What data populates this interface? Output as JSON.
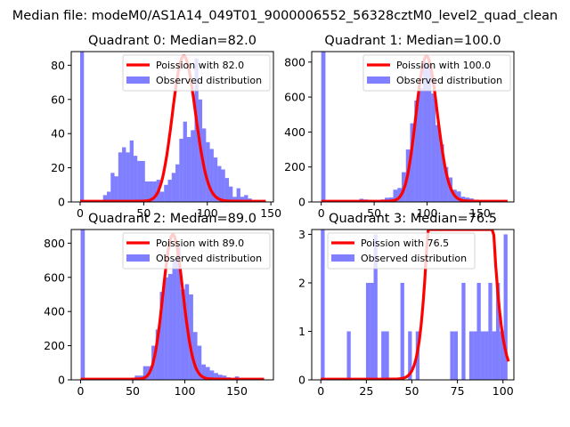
{
  "figure": {
    "suptitle": "Median file: modeM0/AS1A14_049T01_9000006552_56328cztM0_level2_quad_clean"
  },
  "colors": {
    "hist": "#0000ff",
    "hist_alpha": 0.5,
    "poisson": "#ff0000",
    "axis": "#000000"
  },
  "chart_data": [
    {
      "type": "bar",
      "title": "Quadrant 0: Median=82.0",
      "median": 82.0,
      "xlim": [
        -7,
        152
      ],
      "ylim": [
        0,
        88
      ],
      "xticks": [
        0,
        50,
        100,
        150
      ],
      "yticks": [
        0,
        20,
        40,
        60,
        80
      ],
      "legend": [
        "Poission with 82.0",
        "Observed distribution"
      ],
      "legend_loc": "upper right",
      "bin_width": 3,
      "bins_x0": [
        0,
        18,
        21,
        24,
        27,
        30,
        33,
        36,
        39,
        42,
        45,
        48,
        51,
        54,
        57,
        60,
        63,
        66,
        69,
        72,
        75,
        78,
        81,
        84,
        87,
        90,
        93,
        96,
        99,
        102,
        105,
        108,
        111,
        114,
        117,
        120,
        123,
        126,
        129,
        132,
        135
      ],
      "bins_y": [
        400,
        4,
        6,
        17,
        15,
        29,
        32,
        29,
        36,
        27,
        24,
        24,
        12,
        12,
        12,
        13,
        6,
        10,
        13,
        17,
        22,
        37,
        47,
        38,
        42,
        84,
        60,
        43,
        35,
        31,
        26,
        21,
        19,
        14,
        9,
        3,
        8,
        3,
        4,
        2,
        1
      ],
      "poisson_scale": 85
    },
    {
      "type": "bar",
      "title": "Quadrant 1: Median=100.0",
      "median": 100.0,
      "xlim": [
        -9,
        182
      ],
      "ylim": [
        0,
        860
      ],
      "xticks": [
        0,
        50,
        100,
        150
      ],
      "yticks": [
        0,
        200,
        400,
        600,
        800
      ],
      "legend": [
        "Poission with 100.0",
        "Observed distribution"
      ],
      "legend_loc": "upper right",
      "bin_width": 4,
      "bins_x0": [
        0,
        36,
        40,
        44,
        48,
        52,
        56,
        60,
        64,
        68,
        72,
        76,
        80,
        84,
        88,
        92,
        96,
        100,
        104,
        108,
        112,
        116,
        120,
        124,
        128,
        132,
        136,
        140,
        144,
        148,
        152
      ],
      "bins_y": [
        4000,
        18,
        14,
        12,
        10,
        10,
        14,
        24,
        26,
        70,
        80,
        170,
        300,
        450,
        580,
        650,
        800,
        800,
        620,
        440,
        330,
        200,
        140,
        70,
        60,
        30,
        25,
        20,
        12,
        10,
        6
      ],
      "poisson_scale": 830
    },
    {
      "type": "bar",
      "title": "Quadrant 2: Median=89.0",
      "median": 89.0,
      "xlim": [
        -9,
        185
      ],
      "ylim": [
        0,
        880
      ],
      "xticks": [
        0,
        50,
        100,
        150
      ],
      "yticks": [
        0,
        200,
        400,
        600,
        800
      ],
      "legend": [
        "Poission with 89.0",
        "Observed distribution"
      ],
      "legend_loc": "upper right",
      "bin_width": 4,
      "bins_x0": [
        0,
        52,
        56,
        60,
        64,
        68,
        72,
        76,
        80,
        84,
        88,
        92,
        96,
        100,
        104,
        108,
        112,
        116,
        120,
        124,
        128,
        132,
        136,
        140,
        144,
        148,
        152
      ],
      "bins_y": [
        4000,
        25,
        25,
        80,
        80,
        200,
        295,
        515,
        600,
        620,
        700,
        780,
        530,
        560,
        500,
        280,
        200,
        90,
        75,
        55,
        40,
        30,
        25,
        15,
        10,
        20,
        8
      ],
      "poisson_scale": 845
    },
    {
      "type": "bar",
      "title": "Quadrant 3: Median=76.5",
      "median": 76.5,
      "xlim": [
        -5,
        106
      ],
      "ylim": [
        0,
        3.1
      ],
      "xticks": [
        0,
        25,
        50,
        75,
        100
      ],
      "yticks": [
        0,
        1,
        2,
        3
      ],
      "legend": [
        "Poission with 76.5",
        "Observed distribution"
      ],
      "legend_loc": "upper center",
      "bin_width": 2.1,
      "bins_x0": [
        0,
        14.3,
        24.8,
        26.9,
        29.0,
        33.2,
        35.3,
        43.7,
        47.9,
        52.1,
        71.0,
        73.1,
        77.3,
        81.5,
        83.6,
        85.7,
        87.8,
        89.9,
        92.0,
        94.1,
        96.2,
        98.3,
        100.4
      ],
      "bins_y": [
        10,
        1,
        2,
        2,
        3,
        1,
        1,
        2,
        1,
        1,
        1,
        1,
        2,
        1,
        1,
        2,
        1,
        1,
        2,
        1,
        2,
        1,
        3
      ],
      "poisson_scale": 3.0
    }
  ]
}
